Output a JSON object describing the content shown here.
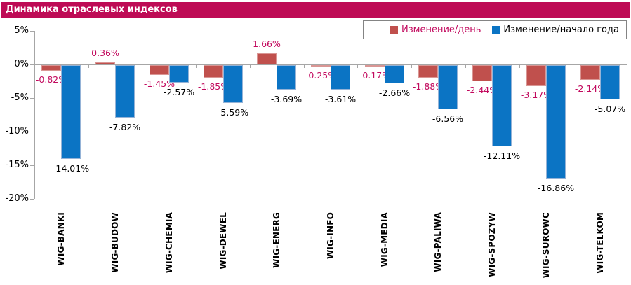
{
  "header": {
    "title": "Динамика отраслевых индексов"
  },
  "chart_data": {
    "type": "bar",
    "title": "Динамика отраслевых индексов",
    "categories": [
      "WIG-BANKI",
      "WIG-BUDOW",
      "WIG-CHEMIA",
      "WIG-DEWEL",
      "WIG-ENERG",
      "WIG-INFO",
      "WIG-MEDIA",
      "WIG-PALIWA",
      "WIG-SPOZYW",
      "WIG-SUROWC",
      "WIG-TELKOM"
    ],
    "series": [
      {
        "name": "Изменение/день",
        "color": "#C0504D",
        "border_color": "#D99694",
        "label_color": "#C20A5E",
        "values": [
          -0.82,
          0.36,
          -1.45,
          -1.85,
          1.66,
          -0.25,
          -0.17,
          -1.88,
          -2.44,
          -3.17,
          -2.14
        ]
      },
      {
        "name": "Изменение/начало года",
        "color": "#0B74C4",
        "border_color": "#95B3D7",
        "label_color": "#000000",
        "values": [
          -14.01,
          -7.82,
          -2.57,
          -5.59,
          -3.69,
          -3.61,
          -2.66,
          -6.56,
          -12.11,
          -16.86,
          -5.07
        ]
      }
    ],
    "y_axis": {
      "ticks": [
        {
          "value": 5,
          "label": "5%"
        },
        {
          "value": 0,
          "label": "0%"
        },
        {
          "value": -5,
          "label": "-5%"
        },
        {
          "value": -10,
          "label": "-10%"
        },
        {
          "value": -15,
          "label": "-15%"
        },
        {
          "value": -20,
          "label": "-20%"
        }
      ],
      "range": [
        -20,
        5
      ]
    },
    "value_suffix": "%",
    "legend_position": "top-right",
    "grid": false,
    "colors": {
      "header_bg": "#BE0B55",
      "header_text": "#FFFFFF",
      "axis_line": "#A6A6A6",
      "background": "#FFFFFF"
    }
  }
}
